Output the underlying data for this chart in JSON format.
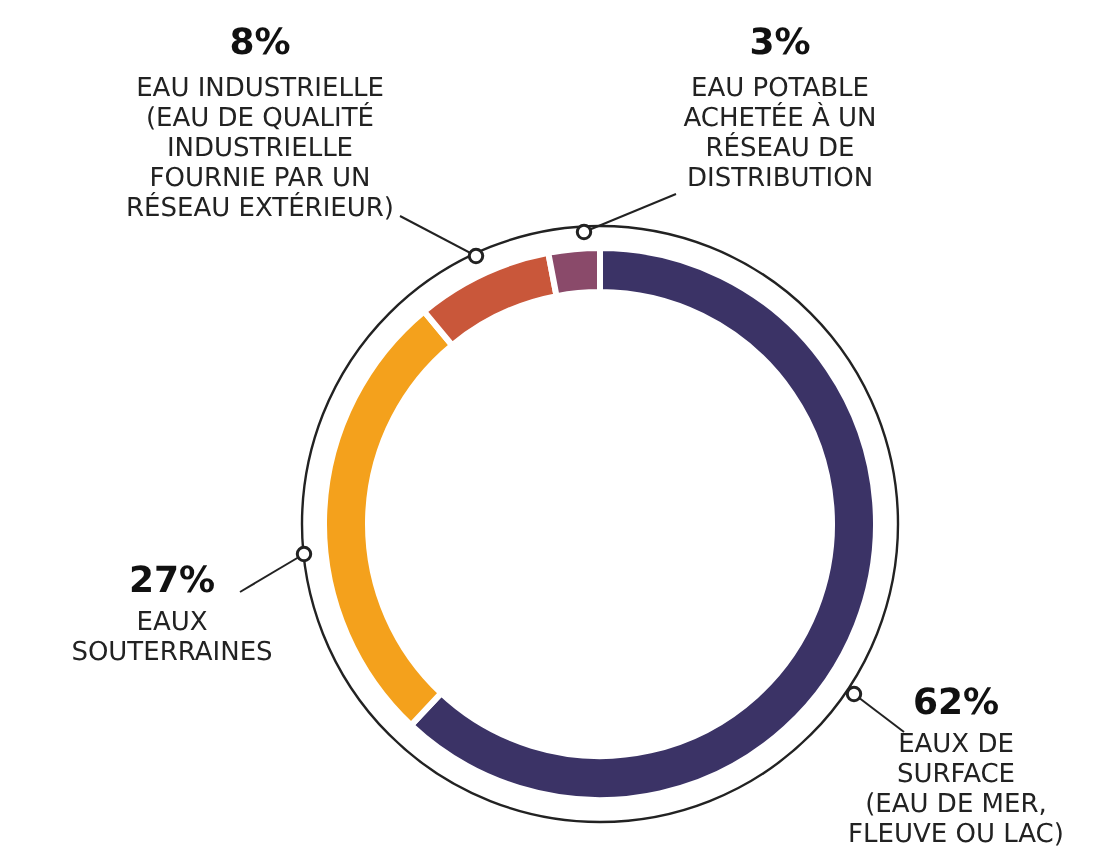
{
  "chart_data": {
    "type": "donut",
    "categories": [
      "EAUX DE\nSURFACE\n(EAU DE MER,\nFLEUVE OU LAC)",
      "EAUX\nSOUTERRAINES",
      "EAU INDUSTRIELLE\n(EAU DE QUALITÉ\nINDUSTRIELLE\nFOURNIE PAR UN\nRÉSEAU EXTÉRIEUR)",
      "EAU POTABLE\nACHETÉE À UN\nRÉSEAU DE\nDISTRIBUTION"
    ],
    "values": [
      62,
      27,
      8,
      3
    ],
    "colors": [
      "#3b3366",
      "#f4a11c",
      "#c9573a",
      "#8a4a6a"
    ],
    "value_labels": [
      "62%",
      "27%",
      "8%",
      "3%"
    ]
  }
}
